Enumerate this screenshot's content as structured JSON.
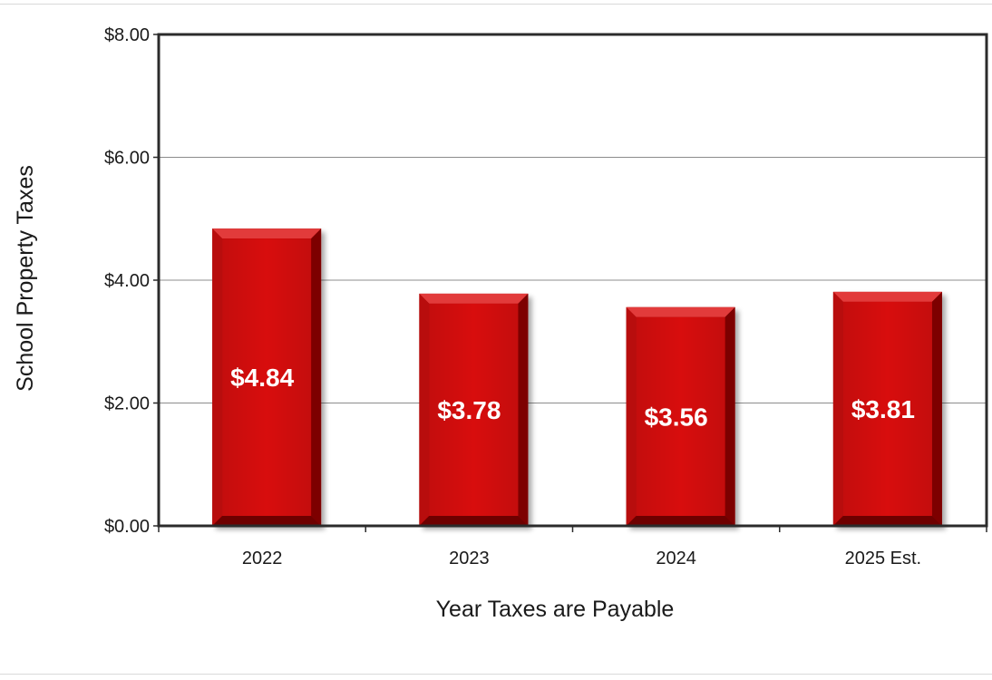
{
  "chart_data": {
    "type": "bar",
    "categories": [
      "2022",
      "2023",
      "2024",
      "2025 Est."
    ],
    "values": [
      4.84,
      3.78,
      3.56,
      3.81
    ],
    "data_labels": [
      "$4.84",
      "$3.78",
      "$3.56",
      "$3.81"
    ],
    "title": "",
    "xlabel": "Year Taxes are Payable",
    "ylabel": "School Property Taxes",
    "ylim": [
      0,
      8
    ],
    "yticks": [
      0,
      2,
      4,
      6,
      8
    ],
    "ytick_labels": [
      "$0.00",
      "$2.00",
      "$4.00",
      "$6.00",
      "$8.00"
    ],
    "grid": true,
    "legend": "none",
    "bar_color": "#cc0a0a"
  }
}
